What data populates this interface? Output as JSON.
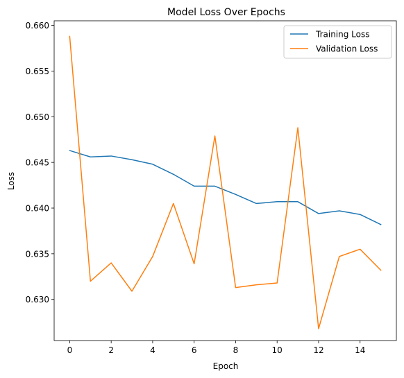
{
  "chart_data": {
    "type": "line",
    "title": "Model Loss Over Epochs",
    "xlabel": "Epoch",
    "ylabel": "Loss",
    "xlim": [
      -0.75,
      15.75
    ],
    "ylim": [
      0.6255,
      0.6605
    ],
    "x_ticks": [
      0,
      2,
      4,
      6,
      8,
      10,
      12,
      14
    ],
    "x_tick_labels": [
      "0",
      "2",
      "4",
      "6",
      "8",
      "10",
      "12",
      "14"
    ],
    "y_ticks": [
      0.63,
      0.635,
      0.64,
      0.645,
      0.65,
      0.655,
      0.66
    ],
    "y_tick_labels": [
      "0.630",
      "0.635",
      "0.640",
      "0.645",
      "0.650",
      "0.655",
      "0.660"
    ],
    "grid": false,
    "legend_position": "top-right",
    "x": [
      0,
      1,
      2,
      3,
      4,
      5,
      6,
      7,
      8,
      9,
      10,
      11,
      12,
      13,
      14,
      15
    ],
    "series": [
      {
        "name": "Training Loss",
        "color": "#1f77b4",
        "values": [
          0.6463,
          0.6456,
          0.6457,
          0.6453,
          0.6448,
          0.6437,
          0.6424,
          0.6424,
          0.6415,
          0.6405,
          0.6407,
          0.6407,
          0.6394,
          0.6397,
          0.6393,
          0.6382
        ]
      },
      {
        "name": "Validation Loss",
        "color": "#ff7f0e",
        "values": [
          0.6588,
          0.632,
          0.634,
          0.6309,
          0.6347,
          0.6405,
          0.6339,
          0.6479,
          0.6313,
          0.6316,
          0.6318,
          0.6488,
          0.6268,
          0.6347,
          0.6355,
          0.6332
        ]
      }
    ]
  }
}
